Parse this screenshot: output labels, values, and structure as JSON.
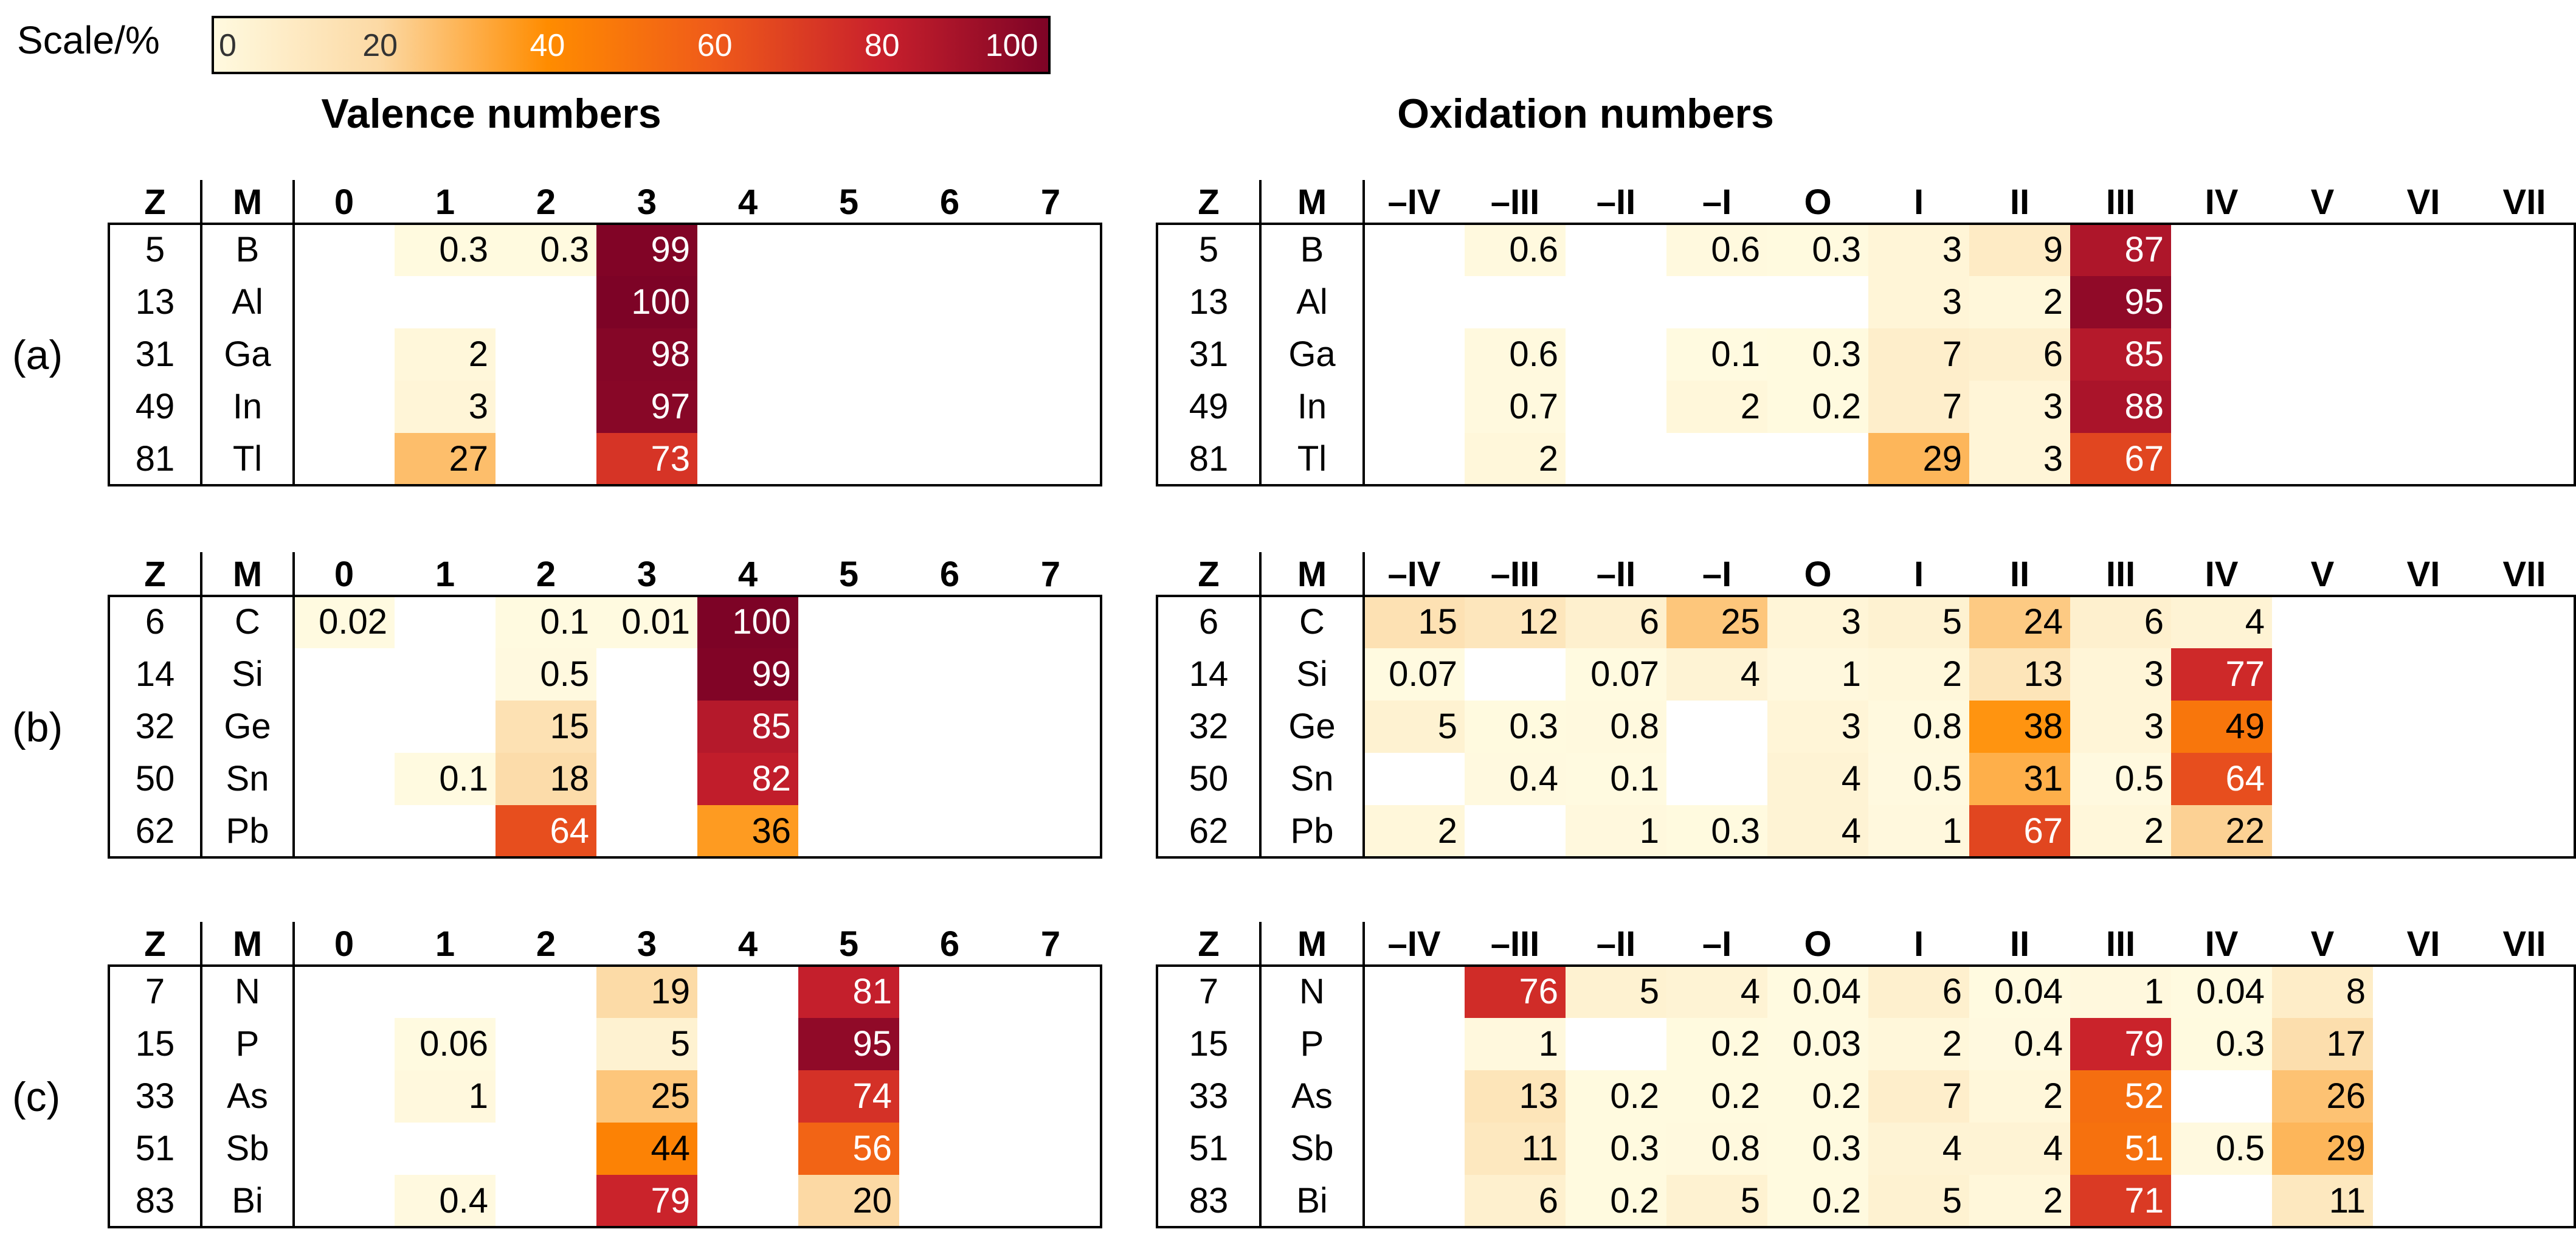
{
  "scale": {
    "label": "Scale/%",
    "ticks": [
      "0",
      "20",
      "40",
      "60",
      "80",
      "100"
    ],
    "colors": [
      "#fff8d9",
      "#fcd9a6",
      "#ff8a00",
      "#e84a20",
      "#c41a30",
      "#7e0428"
    ]
  },
  "left_title": "Valence numbers",
  "right_title": "Oxidation numbers",
  "header_z": "Z",
  "header_m": "M",
  "chart_data": [
    {
      "type": "heatmap",
      "group": "(a)",
      "panel": "Valence numbers",
      "columns": [
        "0",
        "1",
        "2",
        "3",
        "4",
        "5",
        "6",
        "7"
      ],
      "rows": [
        {
          "z": "5",
          "m": "B",
          "values": [
            null,
            "0.3",
            "0.3",
            "99",
            null,
            null,
            null,
            null
          ]
        },
        {
          "z": "13",
          "m": "Al",
          "values": [
            null,
            null,
            null,
            "100",
            null,
            null,
            null,
            null
          ]
        },
        {
          "z": "31",
          "m": "Ga",
          "values": [
            null,
            "2",
            null,
            "98",
            null,
            null,
            null,
            null
          ]
        },
        {
          "z": "49",
          "m": "In",
          "values": [
            null,
            "3",
            null,
            "97",
            null,
            null,
            null,
            null
          ]
        },
        {
          "z": "81",
          "m": "Tl",
          "values": [
            null,
            "27",
            null,
            "73",
            null,
            null,
            null,
            null
          ]
        }
      ]
    },
    {
      "type": "heatmap",
      "group": "(a)",
      "panel": "Oxidation numbers",
      "columns": [
        "–IV",
        "–III",
        "–II",
        "–I",
        "O",
        "I",
        "II",
        "III",
        "IV",
        "V",
        "VI",
        "VII"
      ],
      "rows": [
        {
          "z": "5",
          "m": "B",
          "values": [
            null,
            "0.6",
            null,
            "0.6",
            "0.3",
            "3",
            "9",
            "87",
            null,
            null,
            null,
            null
          ]
        },
        {
          "z": "13",
          "m": "Al",
          "values": [
            null,
            null,
            null,
            null,
            null,
            "3",
            "2",
            "95",
            null,
            null,
            null,
            null
          ]
        },
        {
          "z": "31",
          "m": "Ga",
          "values": [
            null,
            "0.6",
            null,
            "0.1",
            "0.3",
            "7",
            "6",
            "85",
            null,
            null,
            null,
            null
          ]
        },
        {
          "z": "49",
          "m": "In",
          "values": [
            null,
            "0.7",
            null,
            "2",
            "0.2",
            "7",
            "3",
            "88",
            null,
            null,
            null,
            null
          ]
        },
        {
          "z": "81",
          "m": "Tl",
          "values": [
            null,
            "2",
            null,
            null,
            null,
            "29",
            "3",
            "67",
            null,
            null,
            null,
            null
          ]
        }
      ]
    },
    {
      "type": "heatmap",
      "group": "(b)",
      "panel": "Valence numbers",
      "columns": [
        "0",
        "1",
        "2",
        "3",
        "4",
        "5",
        "6",
        "7"
      ],
      "rows": [
        {
          "z": "6",
          "m": "C",
          "values": [
            "0.02",
            null,
            "0.1",
            "0.01",
            "100",
            null,
            null,
            null
          ]
        },
        {
          "z": "14",
          "m": "Si",
          "values": [
            null,
            null,
            "0.5",
            null,
            "99",
            null,
            null,
            null
          ]
        },
        {
          "z": "32",
          "m": "Ge",
          "values": [
            null,
            null,
            "15",
            null,
            "85",
            null,
            null,
            null
          ]
        },
        {
          "z": "50",
          "m": "Sn",
          "values": [
            null,
            "0.1",
            "18",
            null,
            "82",
            null,
            null,
            null
          ]
        },
        {
          "z": "62",
          "m": "Pb",
          "values": [
            null,
            null,
            "64",
            null,
            "36",
            null,
            null,
            null
          ]
        }
      ]
    },
    {
      "type": "heatmap",
      "group": "(b)",
      "panel": "Oxidation numbers",
      "columns": [
        "–IV",
        "–III",
        "–II",
        "–I",
        "O",
        "I",
        "II",
        "III",
        "IV",
        "V",
        "VI",
        "VII"
      ],
      "rows": [
        {
          "z": "6",
          "m": "C",
          "values": [
            "15",
            "12",
            "6",
            "25",
            "3",
            "5",
            "24",
            "6",
            "4",
            null,
            null,
            null
          ]
        },
        {
          "z": "14",
          "m": "Si",
          "values": [
            "0.07",
            null,
            "0.07",
            "4",
            "1",
            "2",
            "13",
            "3",
            "77",
            null,
            null,
            null
          ]
        },
        {
          "z": "32",
          "m": "Ge",
          "values": [
            "5",
            "0.3",
            "0.8",
            null,
            "3",
            "0.8",
            "38",
            "3",
            "49",
            null,
            null,
            null
          ]
        },
        {
          "z": "50",
          "m": "Sn",
          "values": [
            null,
            "0.4",
            "0.1",
            null,
            "4",
            "0.5",
            "31",
            "0.5",
            "64",
            null,
            null,
            null
          ]
        },
        {
          "z": "62",
          "m": "Pb",
          "values": [
            "2",
            null,
            "1",
            "0.3",
            "4",
            "1",
            "67",
            "2",
            "22",
            null,
            null,
            null
          ]
        }
      ]
    },
    {
      "type": "heatmap",
      "group": "(c)",
      "panel": "Valence numbers",
      "columns": [
        "0",
        "1",
        "2",
        "3",
        "4",
        "5",
        "6",
        "7"
      ],
      "rows": [
        {
          "z": "7",
          "m": "N",
          "values": [
            null,
            null,
            null,
            "19",
            null,
            "81",
            null,
            null
          ]
        },
        {
          "z": "15",
          "m": "P",
          "values": [
            null,
            "0.06",
            null,
            "5",
            null,
            "95",
            null,
            null
          ]
        },
        {
          "z": "33",
          "m": "As",
          "values": [
            null,
            "1",
            null,
            "25",
            null,
            "74",
            null,
            null
          ]
        },
        {
          "z": "51",
          "m": "Sb",
          "values": [
            null,
            null,
            null,
            "44",
            null,
            "56",
            null,
            null
          ]
        },
        {
          "z": "83",
          "m": "Bi",
          "values": [
            null,
            "0.4",
            null,
            "79",
            null,
            "20",
            null,
            null
          ]
        }
      ]
    },
    {
      "type": "heatmap",
      "group": "(c)",
      "panel": "Oxidation numbers",
      "columns": [
        "–IV",
        "–III",
        "–II",
        "–I",
        "O",
        "I",
        "II",
        "III",
        "IV",
        "V",
        "VI",
        "VII"
      ],
      "rows": [
        {
          "z": "7",
          "m": "N",
          "values": [
            null,
            "76",
            "5",
            "4",
            "0.04",
            "6",
            "0.04",
            "1",
            "0.04",
            "8",
            null,
            null
          ]
        },
        {
          "z": "15",
          "m": "P",
          "values": [
            null,
            "1",
            null,
            "0.2",
            "0.03",
            "2",
            "0.4",
            "79",
            "0.3",
            "17",
            null,
            null
          ]
        },
        {
          "z": "33",
          "m": "As",
          "values": [
            null,
            "13",
            "0.2",
            "0.2",
            "0.2",
            "7",
            "2",
            "52",
            null,
            "26",
            null,
            null
          ]
        },
        {
          "z": "51",
          "m": "Sb",
          "values": [
            null,
            "11",
            "0.3",
            "0.8",
            "0.3",
            "4",
            "4",
            "51",
            "0.5",
            "29",
            null,
            null
          ]
        },
        {
          "z": "83",
          "m": "Bi",
          "values": [
            null,
            "6",
            "0.2",
            "5",
            "0.2",
            "5",
            "2",
            "71",
            null,
            "11",
            null,
            null
          ]
        }
      ]
    }
  ]
}
